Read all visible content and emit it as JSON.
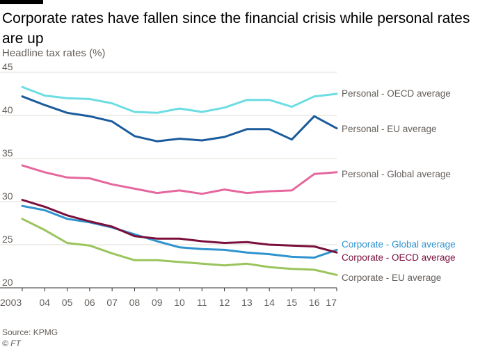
{
  "header": {
    "title": "Corporate rates have fallen since the financial crisis while personal rates are up",
    "subtitle": "Headline tax rates (%)"
  },
  "footer": {
    "source": "Source: KPMG",
    "copyright": "© FT"
  },
  "chart_data": {
    "type": "line",
    "title": "Corporate rates have fallen since the financial crisis while personal rates are up",
    "ylabel": "Headline tax rates (%)",
    "x": [
      "2003",
      "04",
      "05",
      "06",
      "07",
      "08",
      "09",
      "10",
      "11",
      "12",
      "13",
      "14",
      "15",
      "16",
      "17"
    ],
    "yticks": [
      20,
      25,
      30,
      35,
      40,
      45
    ],
    "ylim": [
      20,
      45
    ],
    "grid": "horizontal",
    "legend": "inline-right",
    "series": [
      {
        "name": "Personal - OECD average",
        "color": "#6cdde2",
        "values": [
          43.3,
          42.3,
          42.0,
          41.9,
          41.4,
          40.4,
          40.3,
          40.8,
          40.4,
          40.9,
          41.8,
          41.8,
          41.0,
          42.2,
          42.5
        ]
      },
      {
        "name": "Personal - EU average",
        "color": "#1a5b9c",
        "values": [
          42.2,
          41.2,
          40.3,
          39.9,
          39.3,
          37.6,
          37.0,
          37.3,
          37.1,
          37.5,
          38.4,
          38.4,
          37.2,
          39.9,
          38.5
        ]
      },
      {
        "name": "Personal - Global average",
        "color": "#e5679d",
        "values": [
          34.2,
          33.4,
          32.8,
          32.7,
          32.0,
          31.5,
          31.0,
          31.3,
          30.9,
          31.4,
          31.0,
          31.2,
          31.3,
          33.2,
          33.4
        ]
      },
      {
        "name": "Corporate - Global average",
        "color": "#2e93cf",
        "values": [
          29.5,
          29.0,
          28.0,
          27.6,
          27.0,
          26.2,
          25.4,
          24.7,
          24.5,
          24.4,
          24.1,
          23.9,
          23.6,
          23.5,
          24.4
        ]
      },
      {
        "name": "Corporate - OECD average",
        "color": "#7a0f3c",
        "values": [
          30.2,
          29.4,
          28.4,
          27.7,
          27.1,
          26.0,
          25.7,
          25.7,
          25.4,
          25.2,
          25.3,
          25.0,
          24.9,
          24.8,
          24.1
        ]
      },
      {
        "name": "Corporate - EU average",
        "color": "#9bc45c",
        "values": [
          28.0,
          26.7,
          25.2,
          24.9,
          24.0,
          23.2,
          23.2,
          23.0,
          22.8,
          22.6,
          22.8,
          22.4,
          22.2,
          22.1,
          21.5
        ]
      }
    ]
  }
}
